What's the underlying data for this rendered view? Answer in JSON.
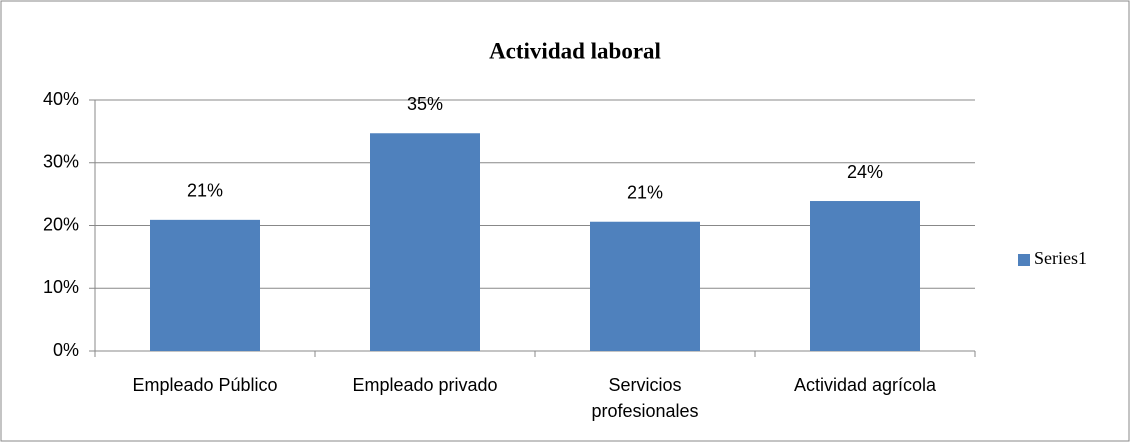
{
  "chart_data": {
    "type": "bar",
    "title": "Actividad laboral",
    "categories": [
      "Empleado Público",
      "Empleado privado",
      "Servicios profesionales",
      "Actividad agrícola"
    ],
    "series": [
      {
        "name": "Series1",
        "color": "#4f81bd",
        "values": [
          20.9,
          34.7,
          20.6,
          23.9
        ],
        "value_labels": [
          "21%",
          "35%",
          "21%",
          "24%"
        ]
      }
    ],
    "ylim": [
      0,
      40
    ],
    "yticks": [
      {
        "value": 0,
        "label": "0%"
      },
      {
        "value": 10,
        "label": "10%"
      },
      {
        "value": 20,
        "label": "20%"
      },
      {
        "value": 30,
        "label": "30%"
      },
      {
        "value": 40,
        "label": "40%"
      }
    ],
    "grid": true,
    "legend": "right"
  }
}
